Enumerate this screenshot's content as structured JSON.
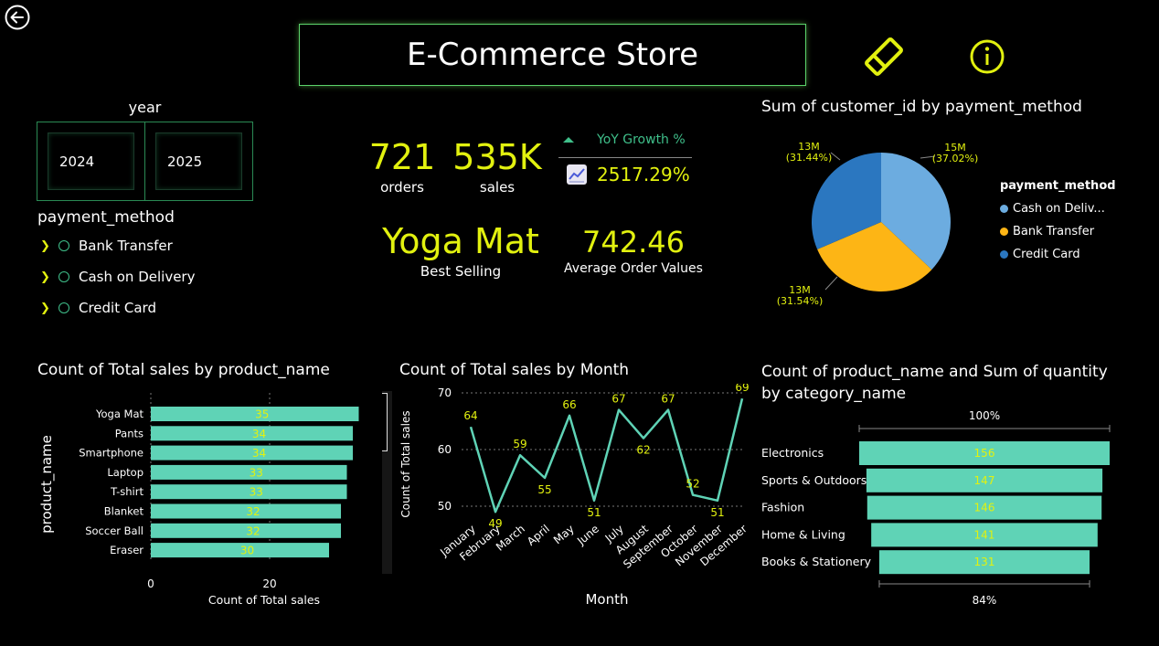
{
  "header": {
    "title": "E-Commerce Store"
  },
  "filters": {
    "year": {
      "label": "year",
      "options": [
        "2024",
        "2025"
      ]
    },
    "payment_method": {
      "label": "payment_method",
      "options": [
        "Bank Transfer",
        "Cash on Delivery",
        "Credit Card"
      ]
    }
  },
  "kpis": {
    "orders": {
      "value": "721",
      "label": "orders"
    },
    "sales": {
      "value": "535K",
      "label": "sales"
    },
    "yoy": {
      "label": "YoY Growth %",
      "value": "2517.29%"
    },
    "best_selling": {
      "value": "Yoga Mat",
      "label": "Best Selling"
    },
    "aov": {
      "value": "742.46",
      "label": "Average Order Values"
    }
  },
  "colors": {
    "accent": "#e2f10f",
    "teal": "#5fd3b6",
    "border": "#5bd36b"
  },
  "chart_data": [
    {
      "type": "pie",
      "title": "Sum of customer_id by payment_method",
      "legend_title": "payment_method",
      "legend_labels": [
        "Cash on Deliv...",
        "Bank Transfer",
        "Credit Card"
      ],
      "categories": [
        "Cash on Delivery",
        "Bank Transfer",
        "Credit Card"
      ],
      "values": [
        37.02,
        31.54,
        31.44
      ],
      "labels": [
        {
          "value": "15M",
          "pct": "(37.02%)"
        },
        {
          "value": "13M",
          "pct": "(31.54%)"
        },
        {
          "value": "13M",
          "pct": "(31.44%)"
        }
      ],
      "colors": [
        "#6cace0",
        "#fdb515",
        "#2b77c0"
      ],
      "legend": "right"
    },
    {
      "type": "bar",
      "orientation": "horizontal",
      "title": "Count of Total sales by product_name",
      "xlabel": "Count of Total sales",
      "ylabel": "product_name",
      "categories": [
        "Yoga Mat",
        "Pants",
        "Smartphone",
        "Laptop",
        "T-shirt",
        "Blanket",
        "Soccer Ball",
        "Eraser"
      ],
      "values": [
        35,
        34,
        34,
        33,
        33,
        32,
        32,
        30
      ],
      "xticks": [
        "0",
        "20"
      ],
      "xlim": [
        0,
        35
      ],
      "grid": true
    },
    {
      "type": "line",
      "title": "Count of Total sales by Month",
      "xlabel": "Month",
      "ylabel": "Count of Total sales",
      "categories": [
        "January",
        "February",
        "March",
        "April",
        "May",
        "June",
        "July",
        "August",
        "September",
        "October",
        "November",
        "December"
      ],
      "values": [
        64,
        49,
        59,
        55,
        66,
        51,
        67,
        62,
        67,
        52,
        51,
        69
      ],
      "yticks": [
        "70",
        "60",
        "50"
      ],
      "ylim": [
        50,
        70
      ],
      "grid": true
    },
    {
      "type": "bar",
      "orientation": "funnel",
      "title": "Count of product_name and Sum of quantity by category_name",
      "title_lines": [
        "Count of product_name and Sum of quantity",
        "by category_name"
      ],
      "categories": [
        "Electronics",
        "Sports & Outdoors",
        "Fashion",
        "Home & Living",
        "Books & Stationery"
      ],
      "values": [
        156,
        147,
        146,
        141,
        131
      ],
      "top_label": "100%",
      "bottom_label": "84%"
    }
  ]
}
